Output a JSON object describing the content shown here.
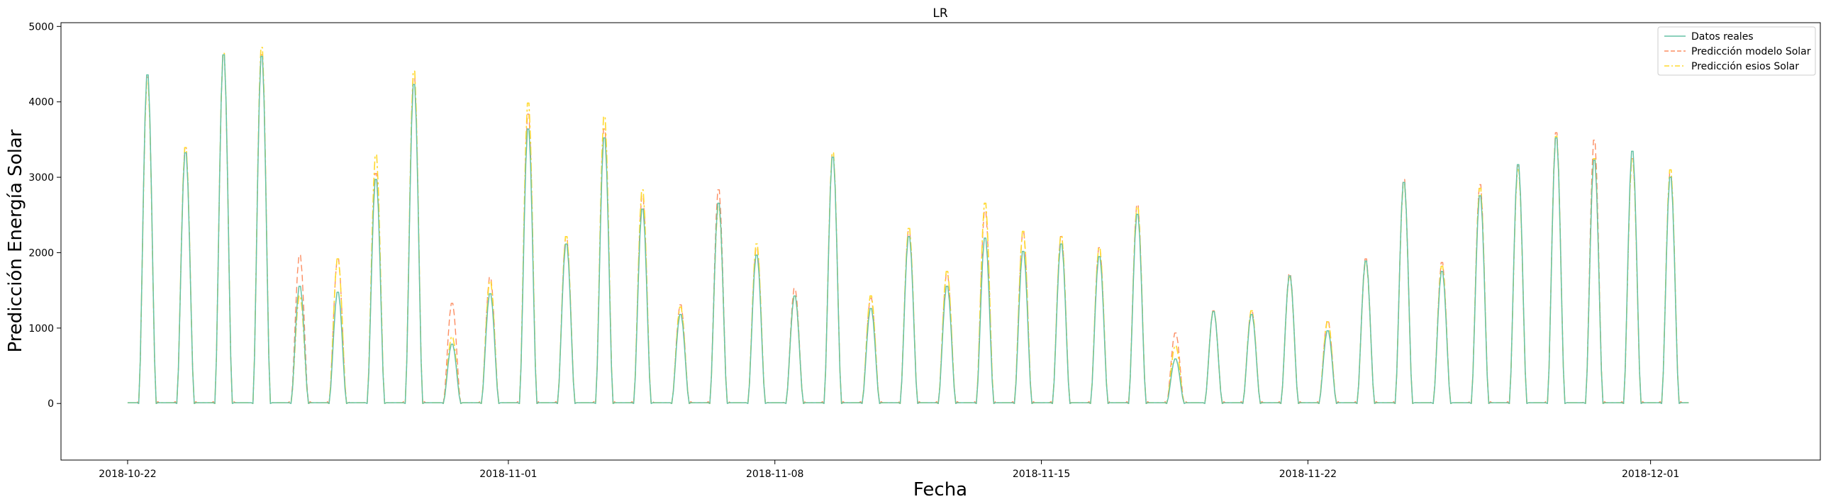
{
  "chart_data": {
    "type": "line",
    "title": "LR",
    "xlabel": "Fecha",
    "ylabel": "Predicción Energía Solar",
    "ylim": [
      -750,
      5050
    ],
    "xlim": [
      "2018-10-20T06:00",
      "2018-12-05T11:00"
    ],
    "yticks": [
      "0",
      "1000",
      "2000",
      "3000",
      "4000",
      "5000"
    ],
    "xticks": [
      "2018-10-22",
      "2018-11-01",
      "2018-11-08",
      "2018-11-15",
      "2018-11-22",
      "2018-12-01"
    ],
    "legend_position": "top-right",
    "grid": false,
    "series": [
      {
        "name": "Datos reales",
        "color": "#66c2a5",
        "style": "solid"
      },
      {
        "name": "Predicción modelo Solar",
        "color": "#fc8d62",
        "style": "dashed"
      },
      {
        "name": "Predicción esios Solar",
        "color": "#ffd92f",
        "style": "dashdot"
      }
    ],
    "x": [
      "2018-10-22",
      "2018-10-23",
      "2018-10-24",
      "2018-10-25",
      "2018-10-26",
      "2018-10-27",
      "2018-10-28",
      "2018-10-29",
      "2018-10-30",
      "2018-10-31",
      "2018-11-01",
      "2018-11-02",
      "2018-11-03",
      "2018-11-04",
      "2018-11-05",
      "2018-11-06",
      "2018-11-07",
      "2018-11-08",
      "2018-11-09",
      "2018-11-10",
      "2018-11-11",
      "2018-11-12",
      "2018-11-13",
      "2018-11-14",
      "2018-11-15",
      "2018-11-16",
      "2018-11-17",
      "2018-11-18",
      "2018-11-19",
      "2018-11-20",
      "2018-11-21",
      "2018-11-22",
      "2018-11-23",
      "2018-11-24",
      "2018-11-25",
      "2018-11-26",
      "2018-11-27",
      "2018-11-28",
      "2018-11-29",
      "2018-11-30",
      "2018-12-01",
      "2018-12-02"
    ],
    "daily_peak_reales": [
      4430,
      3380,
      4700,
      4680,
      1580,
      1500,
      3020,
      4300,
      800,
      1480,
      3700,
      2150,
      3580,
      2620,
      1200,
      2700,
      2000,
      1450,
      3320,
      1280,
      2250,
      1580,
      2230,
      2050,
      2150,
      1980,
      2550,
      600,
      1240,
      1200,
      1720,
      980,
      1920,
      2980,
      1780,
      2800,
      3220,
      3580,
      3280,
      3400,
      3050,
      0
    ],
    "daily_peak_modelo": [
      4400,
      3450,
      4680,
      4700,
      2000,
      1950,
      3100,
      4400,
      1350,
      1700,
      3900,
      2250,
      3700,
      2800,
      1330,
      2880,
      2100,
      1550,
      3360,
      1420,
      2330,
      1750,
      2600,
      2300,
      2250,
      2100,
      2680,
      950,
      1250,
      1250,
      1750,
      1120,
      1950,
      3020,
      1900,
      2950,
      3200,
      3650,
      3550,
      3300,
      3100,
      0
    ],
    "daily_peak_esios": [
      4350,
      3450,
      4720,
      4800,
      1450,
      1950,
      3350,
      4480,
      900,
      1650,
      4050,
      2250,
      3870,
      2880,
      1300,
      2650,
      2150,
      1450,
      3380,
      1450,
      2360,
      1780,
      2700,
      2320,
      2260,
      2100,
      2650,
      780,
      1250,
      1250,
      1700,
      1100,
      1900,
      2950,
      1850,
      2900,
      3150,
      3600,
      3300,
      3300,
      3150,
      0
    ]
  }
}
